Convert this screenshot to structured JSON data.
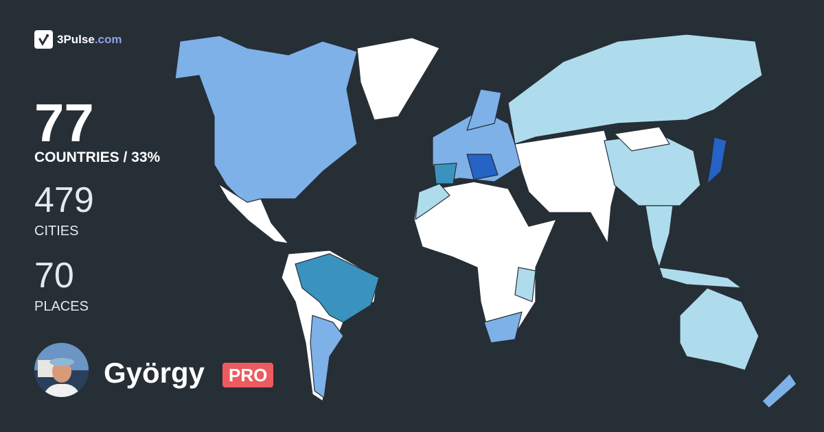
{
  "brand": {
    "name": "3Pulse",
    "domain": ".com",
    "icon": "pulse-check-icon"
  },
  "stats": {
    "countries": {
      "value": "77",
      "label": "COUNTRIES / 33%"
    },
    "cities": {
      "value": "479",
      "label": "CITIES"
    },
    "places": {
      "value": "70",
      "label": "PLACES"
    }
  },
  "user": {
    "name": "György",
    "badge": "PRO"
  },
  "colors": {
    "background": "#262e36",
    "unvisited": "#ffffff",
    "level1": "#aedcec",
    "level2": "#7db1e8",
    "level3": "#3a93bf",
    "level4": "#2563c4",
    "badge": "#ee5b5e",
    "brand_accent": "#8fa3ea"
  }
}
